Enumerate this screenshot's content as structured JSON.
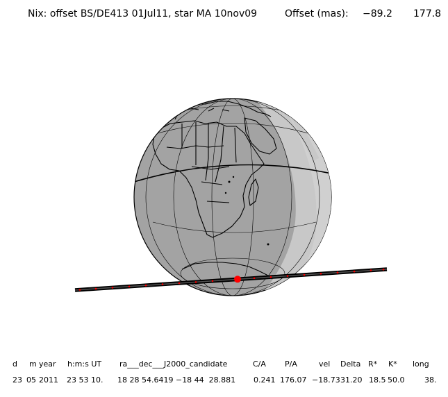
{
  "header": {
    "title": "Nix: offset BS/DE413 01Jul11, star MA 10nov09",
    "offset_label": "Offset (mas):",
    "offset_ra": "−89.2",
    "offset_dec": "177.8"
  },
  "table": {
    "headers": [
      "d",
      "m",
      "year",
      "h:m:s UT",
      "ra___dec___J2000_candidate",
      "C/A",
      "P/A",
      "vel",
      "Delta",
      "R*",
      "K*",
      "long"
    ],
    "values": [
      "23",
      "05",
      "2011",
      "23 53 10.",
      "18 28 54.6419 −18 44  28.881",
      "0.241",
      "176.07",
      "−18.73",
      "31.20",
      "18.5",
      "50.0",
      "38."
    ]
  },
  "colors": {
    "night": "#a3a3a3",
    "twilight": "#c8c8c8",
    "day": "#d0d0d0",
    "path": "#000000",
    "marker": "#ff0000"
  }
}
